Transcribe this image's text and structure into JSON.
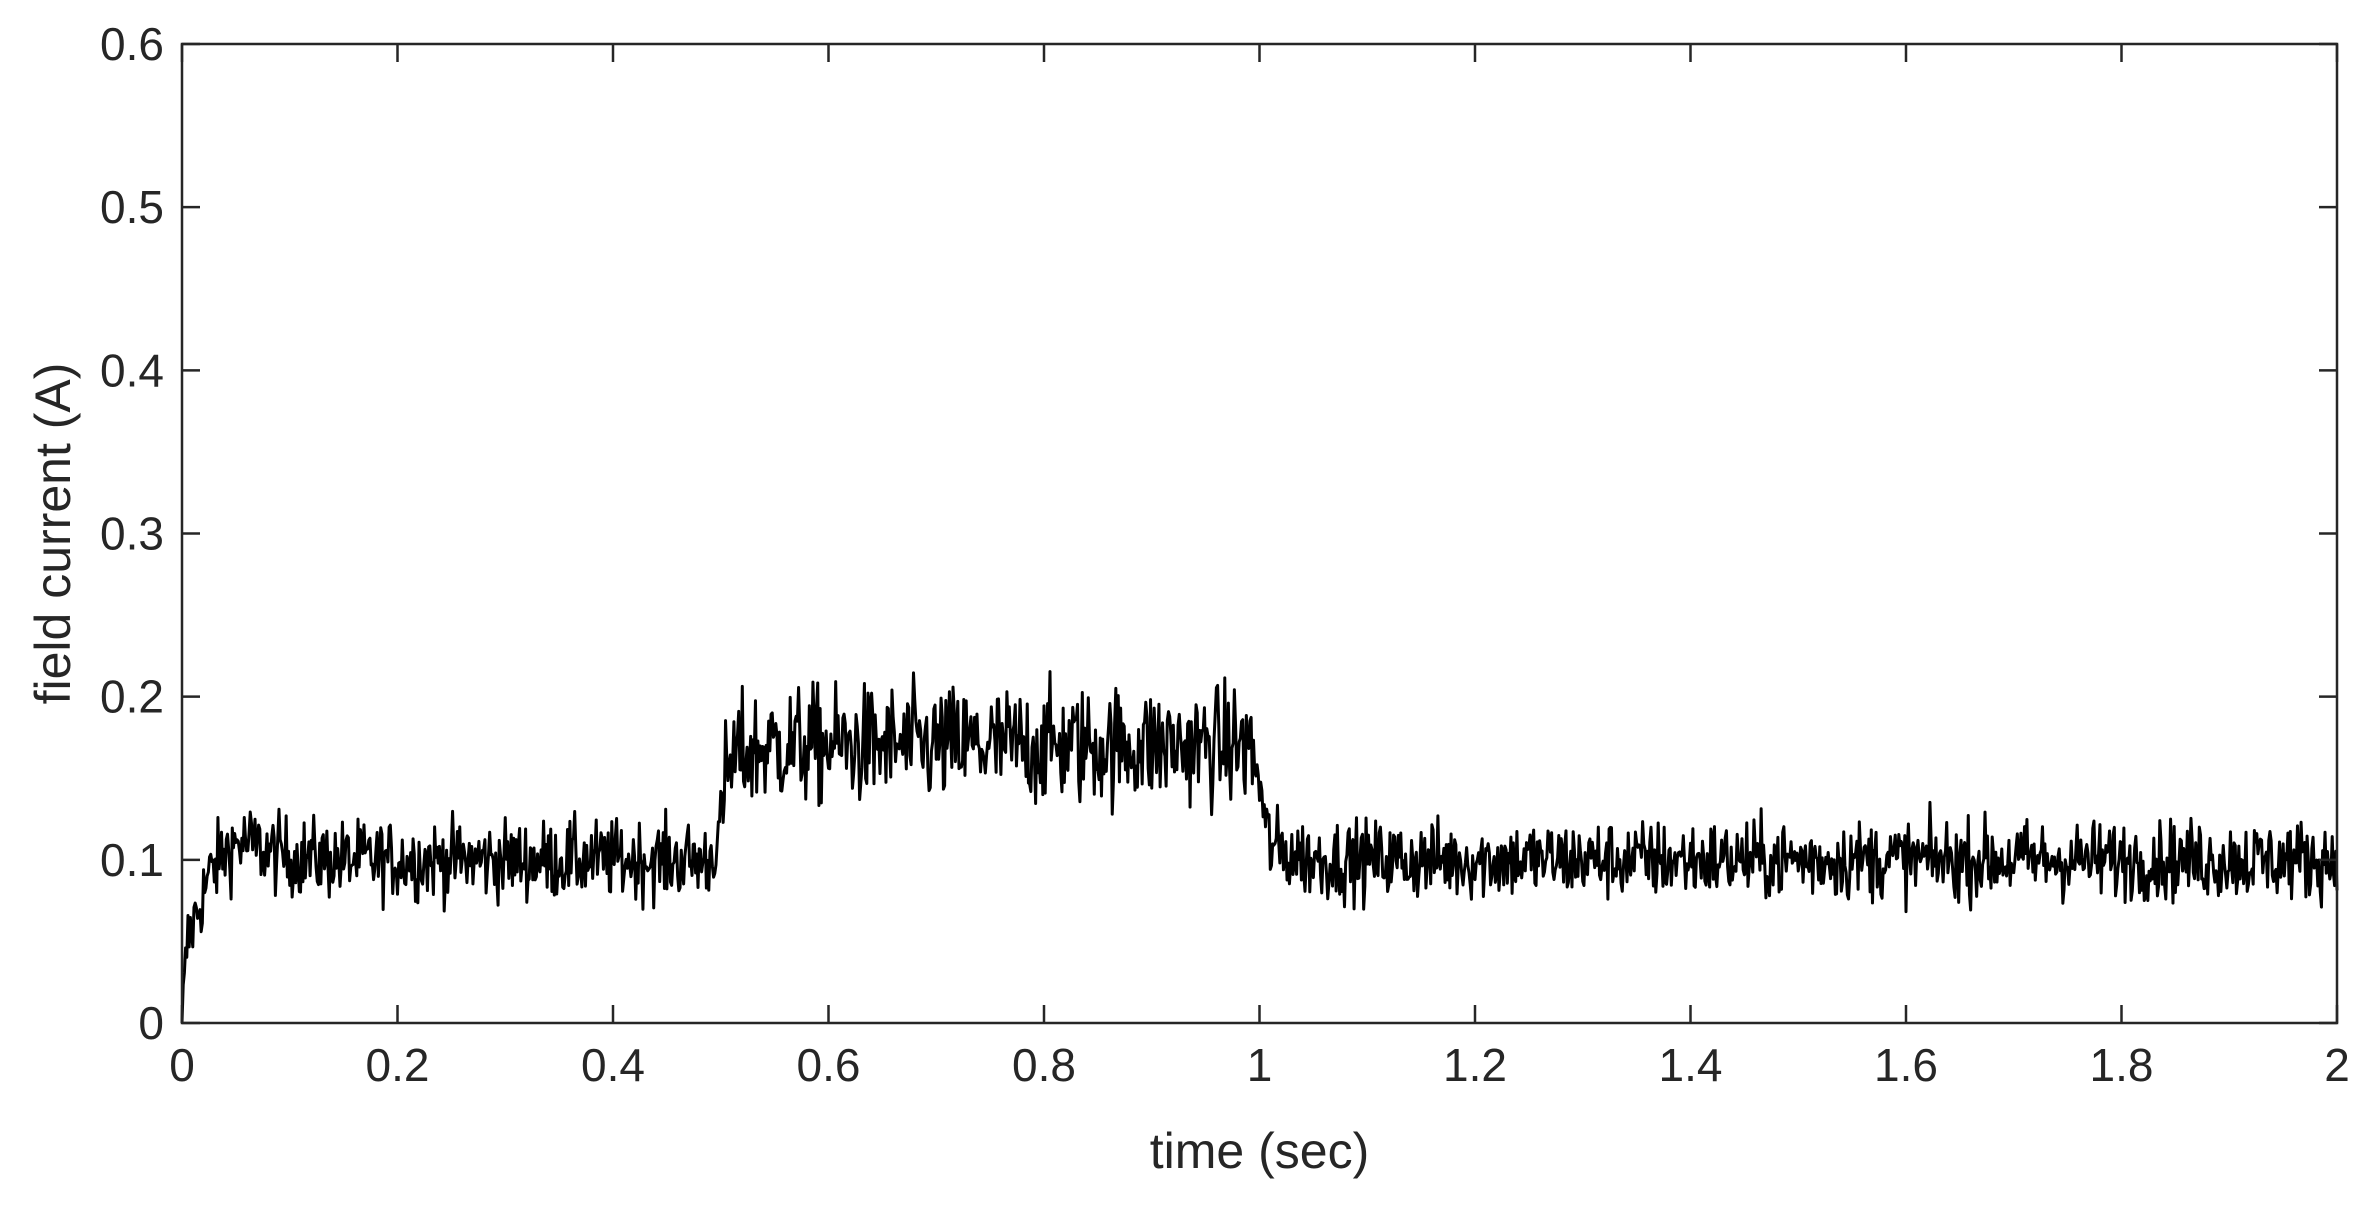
{
  "chart_data": {
    "type": "line",
    "title": "",
    "xlabel": "time (sec)",
    "ylabel": "field current (A)",
    "xlim": [
      0,
      2
    ],
    "ylim": [
      0,
      0.6
    ],
    "xticks": [
      0,
      0.2,
      0.4,
      0.6,
      0.8,
      1,
      1.2,
      1.4,
      1.6,
      1.8,
      2
    ],
    "xtick_labels": [
      "0",
      "0.2",
      "0.4",
      "0.6",
      "0.8",
      "1",
      "1.2",
      "1.4",
      "1.6",
      "1.8",
      "2"
    ],
    "yticks": [
      0,
      0.1,
      0.2,
      0.3,
      0.4,
      0.5,
      0.6
    ],
    "ytick_labels": [
      "0",
      "0.1",
      "0.2",
      "0.3",
      "0.4",
      "0.5",
      "0.6"
    ],
    "grid": false,
    "line_color": "#000000",
    "series": [
      {
        "x": [
          0,
          0.005,
          0.01,
          0.015,
          0.02,
          0.025,
          0.03,
          0.035,
          0.04,
          0.05,
          0.06,
          0.07,
          0.08,
          0.1,
          0.15,
          0.2,
          0.25,
          0.3,
          0.35,
          0.4,
          0.45,
          0.49,
          0.5,
          0.505,
          0.51,
          0.52,
          0.55,
          0.6,
          0.65,
          0.7,
          0.75,
          0.8,
          0.85,
          0.9,
          0.95,
          0.99,
          1.0,
          1.005,
          1.01,
          1.02,
          1.05,
          1.1,
          1.2,
          1.3,
          1.4,
          1.5,
          1.6,
          1.7,
          1.8,
          1.9,
          2.0
        ],
        "y": [
          0,
          0.05,
          0.06,
          0.07,
          0.08,
          0.09,
          0.095,
          0.1,
          0.105,
          0.11,
          0.11,
          0.108,
          0.105,
          0.102,
          0.1,
          0.1,
          0.1,
          0.1,
          0.1,
          0.1,
          0.1,
          0.1,
          0.12,
          0.15,
          0.16,
          0.165,
          0.17,
          0.17,
          0.17,
          0.17,
          0.17,
          0.17,
          0.17,
          0.17,
          0.17,
          0.17,
          0.15,
          0.12,
          0.11,
          0.105,
          0.1,
          0.1,
          0.1,
          0.1,
          0.1,
          0.1,
          0.1,
          0.1,
          0.1,
          0.1,
          0.1
        ]
      }
    ]
  }
}
